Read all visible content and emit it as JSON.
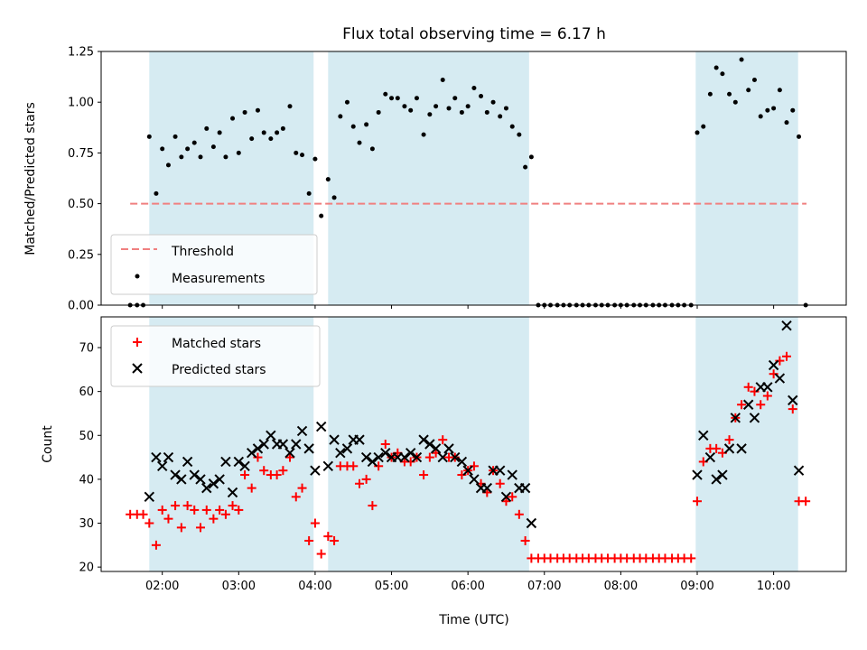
{
  "colors": {
    "band": "#add8e6",
    "threshold": "#f08080",
    "matched": "#ff0000",
    "predicted": "#000000",
    "measurement": "#000000"
  },
  "chart_data": [
    {
      "panel": "top",
      "type": "scatter",
      "title": "Flux total observing time = 6.17 h",
      "ylabel": "Matched/Predicted stars",
      "ylim": [
        0,
        1.25
      ],
      "yticks": [
        0.0,
        0.25,
        0.5,
        0.75,
        1.0,
        1.25
      ],
      "ytick_labels": [
        "0.00",
        "0.25",
        "0.50",
        "0.75",
        "1.00",
        "1.25"
      ],
      "xlim": [
        1.2,
        10.95
      ],
      "legend": "lower-left",
      "shaded_intervals": [
        [
          1.83,
          3.98
        ],
        [
          4.17,
          6.8
        ],
        [
          8.98,
          10.32
        ]
      ],
      "threshold": {
        "name": "Threshold",
        "value": 0.5,
        "x_range": [
          1.58,
          10.43
        ]
      },
      "series": [
        {
          "name": "Measurements",
          "marker": "dot",
          "x": [
            1.58,
            1.67,
            1.75,
            1.83,
            1.92,
            2.0,
            2.08,
            2.17,
            2.25,
            2.33,
            2.42,
            2.5,
            2.58,
            2.67,
            2.75,
            2.83,
            2.92,
            3.0,
            3.08,
            3.17,
            3.25,
            3.33,
            3.42,
            3.5,
            3.58,
            3.67,
            3.75,
            3.83,
            3.92,
            4.0,
            4.08,
            4.17,
            4.25,
            4.33,
            4.42,
            4.5,
            4.58,
            4.67,
            4.75,
            4.83,
            4.92,
            5.0,
            5.08,
            5.17,
            5.25,
            5.33,
            5.42,
            5.5,
            5.58,
            5.67,
            5.75,
            5.83,
            5.92,
            6.0,
            6.08,
            6.17,
            6.25,
            6.33,
            6.42,
            6.5,
            6.58,
            6.67,
            6.75,
            6.83,
            6.92,
            7.0,
            7.08,
            7.17,
            7.25,
            7.33,
            7.42,
            7.5,
            7.58,
            7.67,
            7.75,
            7.83,
            7.92,
            8.0,
            8.08,
            8.17,
            8.25,
            8.33,
            8.42,
            8.5,
            8.58,
            8.67,
            8.75,
            8.83,
            8.92,
            9.0,
            9.08,
            9.17,
            9.25,
            9.33,
            9.42,
            9.5,
            9.58,
            9.67,
            9.75,
            9.83,
            9.92,
            10.0,
            10.08,
            10.17,
            10.25,
            10.33,
            10.42
          ],
          "y": [
            0.0,
            0.0,
            0.0,
            0.83,
            0.55,
            0.77,
            0.69,
            0.83,
            0.73,
            0.77,
            0.8,
            0.73,
            0.87,
            0.78,
            0.85,
            0.73,
            0.92,
            0.75,
            0.95,
            0.82,
            0.96,
            0.85,
            0.82,
            0.85,
            0.87,
            0.98,
            0.75,
            0.74,
            0.55,
            0.72,
            0.44,
            0.62,
            0.53,
            0.93,
            1.0,
            0.88,
            0.8,
            0.89,
            0.77,
            0.95,
            1.04,
            1.02,
            1.02,
            0.98,
            0.96,
            1.02,
            0.84,
            0.94,
            0.98,
            1.11,
            0.97,
            1.02,
            0.95,
            0.98,
            1.07,
            1.03,
            0.95,
            1.0,
            0.93,
            0.97,
            0.88,
            0.84,
            0.68,
            0.73,
            0.0,
            0.0,
            0.0,
            0.0,
            0.0,
            0.0,
            0.0,
            0.0,
            0.0,
            0.0,
            0.0,
            0.0,
            0.0,
            0.0,
            0.0,
            0.0,
            0.0,
            0.0,
            0.0,
            0.0,
            0.0,
            0.0,
            0.0,
            0.0,
            0.0,
            0.85,
            0.88,
            1.04,
            1.17,
            1.14,
            1.04,
            1.0,
            1.21,
            1.06,
            1.11,
            0.93,
            0.96,
            0.97,
            1.06,
            0.9,
            0.96,
            0.83,
            0.0
          ]
        }
      ]
    },
    {
      "panel": "bottom",
      "type": "scatter",
      "xlabel": "Time (UTC)",
      "ylabel": "Count",
      "ylim": [
        19,
        77
      ],
      "yticks": [
        20,
        30,
        40,
        50,
        60,
        70
      ],
      "ytick_labels": [
        "20",
        "30",
        "40",
        "50",
        "60",
        "70"
      ],
      "xlim": [
        1.2,
        10.95
      ],
      "xticks": [
        2,
        3,
        4,
        5,
        6,
        7,
        8,
        9,
        10
      ],
      "xtick_labels": [
        "02:00",
        "03:00",
        "04:00",
        "05:00",
        "06:00",
        "07:00",
        "08:00",
        "09:00",
        "10:00"
      ],
      "legend": "top-left",
      "shaded_intervals": [
        [
          1.83,
          3.98
        ],
        [
          4.17,
          6.8
        ],
        [
          8.98,
          10.32
        ]
      ],
      "series": [
        {
          "name": "Matched stars",
          "marker": "plus",
          "x": [
            1.58,
            1.67,
            1.75,
            1.83,
            1.92,
            2.0,
            2.08,
            2.17,
            2.25,
            2.33,
            2.42,
            2.5,
            2.58,
            2.67,
            2.75,
            2.83,
            2.92,
            3.0,
            3.08,
            3.17,
            3.25,
            3.33,
            3.42,
            3.5,
            3.58,
            3.67,
            3.75,
            3.83,
            3.92,
            4.0,
            4.08,
            4.17,
            4.25,
            4.33,
            4.42,
            4.5,
            4.58,
            4.67,
            4.75,
            4.83,
            4.92,
            5.0,
            5.08,
            5.17,
            5.25,
            5.33,
            5.42,
            5.5,
            5.58,
            5.67,
            5.75,
            5.83,
            5.92,
            6.0,
            6.08,
            6.17,
            6.25,
            6.33,
            6.42,
            6.5,
            6.58,
            6.67,
            6.75,
            6.83,
            6.92,
            7.0,
            7.08,
            7.17,
            7.25,
            7.33,
            7.42,
            7.5,
            7.58,
            7.67,
            7.75,
            7.83,
            7.92,
            8.0,
            8.08,
            8.17,
            8.25,
            8.33,
            8.42,
            8.5,
            8.58,
            8.67,
            8.75,
            8.83,
            8.92,
            9.0,
            9.08,
            9.17,
            9.25,
            9.33,
            9.42,
            9.5,
            9.58,
            9.67,
            9.75,
            9.83,
            9.92,
            10.0,
            10.08,
            10.17,
            10.25,
            10.33,
            10.42
          ],
          "y": [
            32,
            32,
            32,
            30,
            25,
            33,
            31,
            34,
            29,
            34,
            33,
            29,
            33,
            31,
            33,
            32,
            34,
            33,
            41,
            38,
            45,
            42,
            41,
            41,
            42,
            45,
            36,
            38,
            26,
            30,
            23,
            27,
            26,
            43,
            43,
            43,
            39,
            40,
            34,
            43,
            48,
            45,
            46,
            44,
            44,
            45,
            41,
            45,
            46,
            49,
            45,
            45,
            41,
            42,
            43,
            39,
            37,
            42,
            39,
            35,
            36,
            32,
            26,
            22,
            22,
            22,
            22,
            22,
            22,
            22,
            22,
            22,
            22,
            22,
            22,
            22,
            22,
            22,
            22,
            22,
            22,
            22,
            22,
            22,
            22,
            22,
            22,
            22,
            22,
            35,
            44,
            47,
            47,
            46,
            49,
            54,
            57,
            61,
            60,
            57,
            59,
            64,
            67,
            68,
            56,
            35,
            35
          ]
        },
        {
          "name": "Predicted stars",
          "marker": "x",
          "x": [
            1.83,
            1.92,
            2.0,
            2.08,
            2.17,
            2.25,
            2.33,
            2.42,
            2.5,
            2.58,
            2.67,
            2.75,
            2.83,
            2.92,
            3.0,
            3.08,
            3.17,
            3.25,
            3.33,
            3.42,
            3.5,
            3.58,
            3.67,
            3.75,
            3.83,
            3.92,
            4.0,
            4.08,
            4.17,
            4.25,
            4.33,
            4.42,
            4.5,
            4.58,
            4.67,
            4.75,
            4.83,
            4.92,
            5.0,
            5.08,
            5.17,
            5.25,
            5.33,
            5.42,
            5.5,
            5.58,
            5.67,
            5.75,
            5.83,
            5.92,
            6.0,
            6.08,
            6.17,
            6.25,
            6.33,
            6.42,
            6.5,
            6.58,
            6.67,
            6.75,
            6.83,
            9.0,
            9.08,
            9.17,
            9.25,
            9.33,
            9.42,
            9.5,
            9.58,
            9.67,
            9.75,
            9.83,
            9.92,
            10.0,
            10.08,
            10.17,
            10.25,
            10.33
          ],
          "y": [
            36,
            45,
            43,
            45,
            41,
            40,
            44,
            41,
            40,
            38,
            39,
            40,
            44,
            37,
            44,
            43,
            46,
            47,
            48,
            50,
            48,
            48,
            46,
            48,
            51,
            47,
            42,
            52,
            43,
            49,
            46,
            47,
            49,
            49,
            45,
            44,
            45,
            46,
            45,
            45,
            45,
            46,
            45,
            49,
            48,
            47,
            45,
            47,
            45,
            44,
            42,
            40,
            38,
            38,
            42,
            42,
            36,
            41,
            38,
            38,
            30,
            41,
            50,
            45,
            40,
            41,
            47,
            54,
            47,
            57,
            54,
            61,
            61,
            66,
            63,
            75,
            58,
            42
          ]
        }
      ]
    }
  ]
}
